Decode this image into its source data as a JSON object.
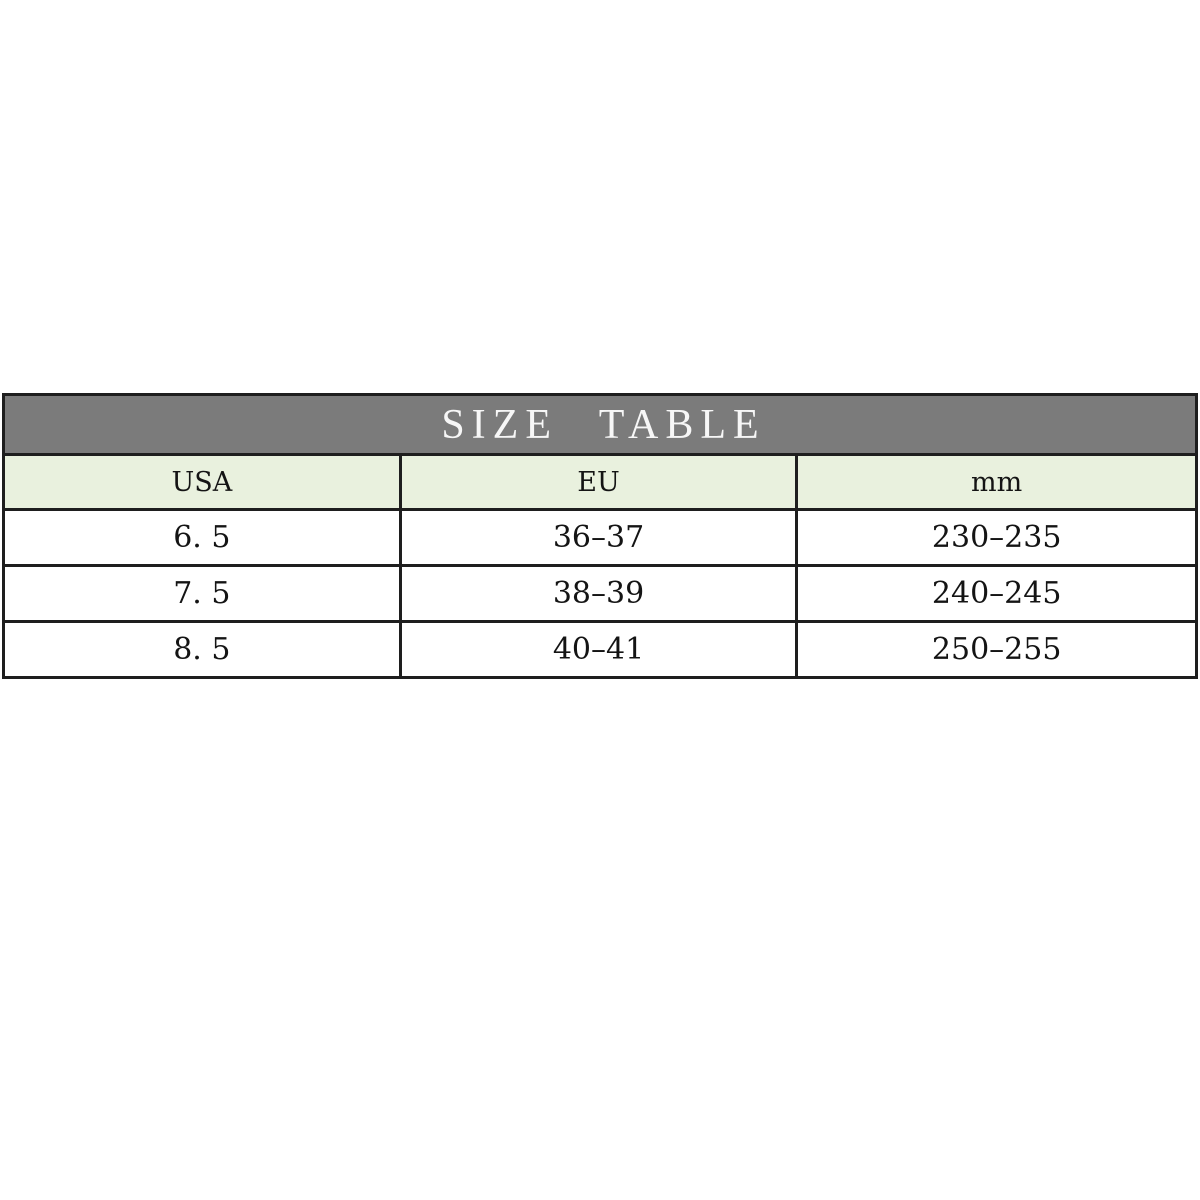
{
  "page": {
    "background_color": "#ffffff"
  },
  "size_table": {
    "title": "SIZE TABLE",
    "title_bg_color": "#7b7b7b",
    "title_text_color": "#f7f7f7",
    "header_bg_color": "#e9f1de",
    "border_color": "#1e1e1e",
    "columns": [
      "USA",
      "EU",
      "mm"
    ],
    "rows": [
      [
        "6. 5",
        "36–37",
        "230–235"
      ],
      [
        "7. 5",
        "38–39",
        "240–245"
      ],
      [
        "8. 5",
        "40–41",
        "250–255"
      ]
    ]
  },
  "chart_data": {
    "type": "table",
    "title": "SIZE TABLE",
    "columns": [
      "USA",
      "EU",
      "mm"
    ],
    "rows": [
      [
        "6.5",
        "36-37",
        "230-235"
      ],
      [
        "7.5",
        "38-39",
        "240-245"
      ],
      [
        "8.5",
        "40-41",
        "250-255"
      ]
    ],
    "layout_hints": {
      "title_bar": "gray full-width band with white serif letter-spaced text",
      "header_row_bg": "#e9f1de",
      "grid": "on",
      "column_widths": "equal thirds",
      "position": "table spans full image width, vertically centered band y=393-679 of 1200px canvas"
    }
  }
}
